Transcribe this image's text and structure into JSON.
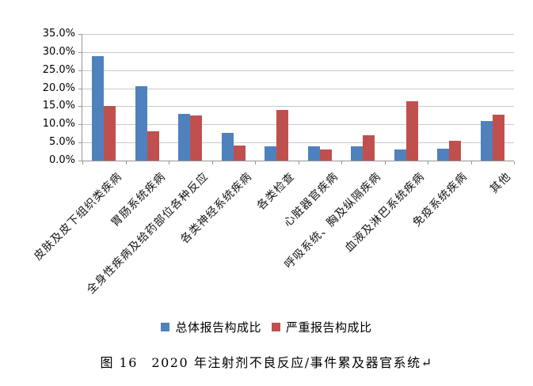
{
  "chart_data": {
    "type": "bar",
    "title": "",
    "categories": [
      "皮肤及皮下组织类疾病",
      "胃肠系统疾病",
      "全身性疾病及给药部位各种反应",
      "各类神经系统疾病",
      "各类检查",
      "心脏器官疾病",
      "呼吸系统、胸及纵隔疾病",
      "血液及淋巴系统疾病",
      "免疫系统疾病",
      "其他"
    ],
    "series": [
      {
        "name": "总体报告构成比",
        "color": "#4F81BD",
        "values": [
          28.8,
          20.6,
          13.0,
          7.7,
          3.9,
          3.9,
          3.9,
          3.0,
          3.3,
          11.0
        ]
      },
      {
        "name": "严重报告构成比",
        "color": "#C0504D",
        "values": [
          15.0,
          8.0,
          12.5,
          4.1,
          14.1,
          3.1,
          7.0,
          16.5,
          5.4,
          12.7
        ]
      }
    ],
    "xlabel": "",
    "ylabel": "",
    "ylim": [
      0,
      35
    ],
    "yticks": [
      "0.0%",
      "5.0%",
      "10.0%",
      "15.0%",
      "20.0%",
      "25.0%",
      "30.0%",
      "35.0%"
    ],
    "grid": true,
    "legend_position": "bottom"
  },
  "figure": {
    "caption": "图 16　2020 年注射剂不良反应/事件累及器官系统↵"
  }
}
